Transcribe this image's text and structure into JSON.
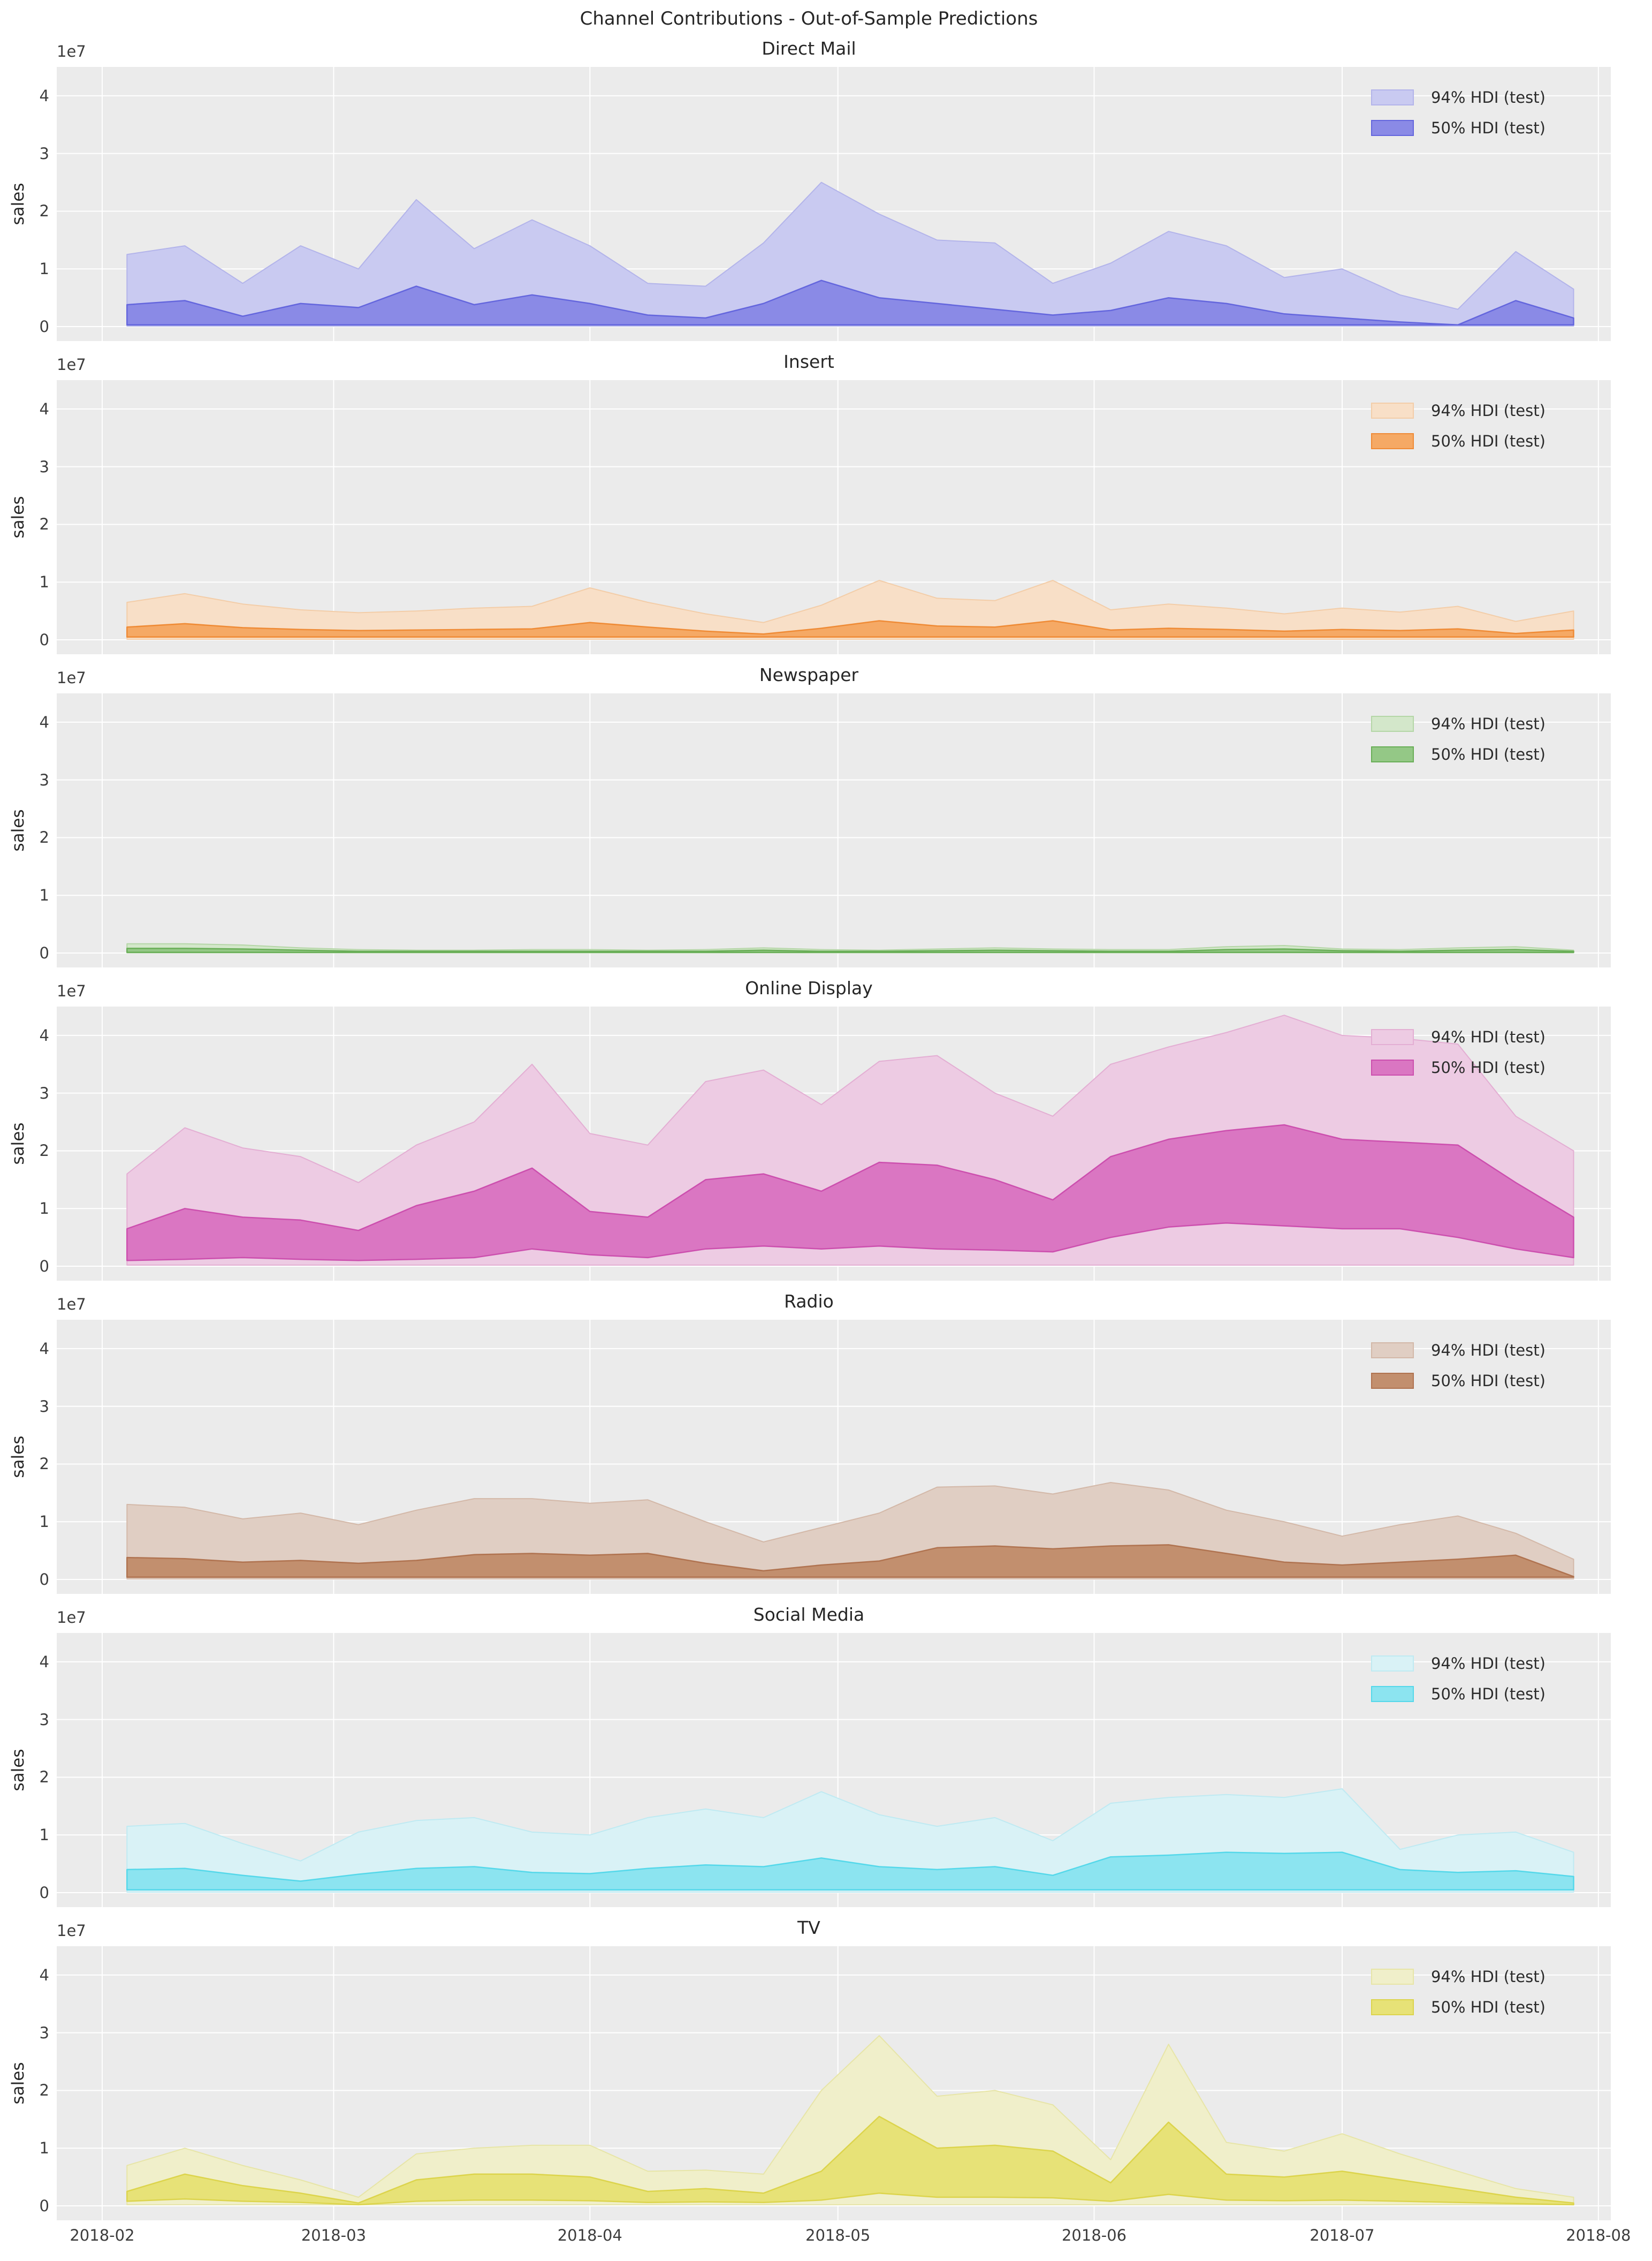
{
  "header": {
    "title": "Channel Contributions - Out-of-Sample Predictions"
  },
  "shared": {
    "ylabel": "sales",
    "y_offset_label": "1e7"
  },
  "style": {
    "figure_bg": "#ffffff",
    "plot_bg": "#ebebeb",
    "grid_color": "#ffffff",
    "title_color": "#262626",
    "tick_color": "#3d3d3d"
  },
  "chart_data": {
    "type": "area",
    "title": "Channel Contributions - Out-of-Sample Predictions",
    "subtitle_note": "7 stacked subplots, one per channel, each showing 94% and 50% HDI bands of weekly out-of-sample sales predictions",
    "xlabel": "",
    "ylabel": "sales",
    "y_units": "1e7",
    "ylim": [
      -0.25,
      4.5
    ],
    "y_ticks": [
      0,
      1,
      2,
      3,
      4
    ],
    "grid": true,
    "legend_position": "upper right",
    "x_ticks": [
      {
        "label": "2018-02",
        "date": "2018-02-01"
      },
      {
        "label": "2018-03",
        "date": "2018-03-01"
      },
      {
        "label": "2018-04",
        "date": "2018-04-01"
      },
      {
        "label": "2018-05",
        "date": "2018-05-01"
      },
      {
        "label": "2018-06",
        "date": "2018-06-01"
      },
      {
        "label": "2018-07",
        "date": "2018-07-01"
      },
      {
        "label": "2018-08",
        "date": "2018-08-01"
      }
    ],
    "x_dates": [
      "2018-02-04",
      "2018-02-11",
      "2018-02-18",
      "2018-02-25",
      "2018-03-04",
      "2018-03-11",
      "2018-03-18",
      "2018-03-25",
      "2018-04-01",
      "2018-04-08",
      "2018-04-15",
      "2018-04-22",
      "2018-04-29",
      "2018-05-06",
      "2018-05-13",
      "2018-05-20",
      "2018-05-27",
      "2018-06-03",
      "2018-06-10",
      "2018-06-17",
      "2018-06-24",
      "2018-07-01",
      "2018-07-08",
      "2018-07-15",
      "2018-07-22",
      "2018-07-29"
    ],
    "channels": [
      {
        "title": "Direct Mail",
        "legend": [
          "94% HDI (test)",
          "50% HDI (test)"
        ],
        "colors": {
          "hdi94_fill": "#c9caf1",
          "hdi94_edge": "#b3b4ea",
          "hdi50_fill": "#8a8ae6",
          "hdi50_edge": "#6466dd"
        },
        "hdi94_upper": [
          1.25,
          1.4,
          0.75,
          1.4,
          1.0,
          2.2,
          1.35,
          1.85,
          1.4,
          0.75,
          0.7,
          1.45,
          2.5,
          1.95,
          1.5,
          1.45,
          0.75,
          1.1,
          1.65,
          1.4,
          0.85,
          1.0,
          0.55,
          0.3,
          1.3,
          0.65
        ],
        "hdi94_lower": 0.01,
        "hdi50_upper": [
          0.38,
          0.45,
          0.18,
          0.4,
          0.33,
          0.7,
          0.38,
          0.55,
          0.4,
          0.2,
          0.15,
          0.4,
          0.8,
          0.5,
          0.4,
          0.3,
          0.2,
          0.28,
          0.5,
          0.4,
          0.22,
          0.15,
          0.08,
          0.03,
          0.45,
          0.15
        ],
        "hdi50_lower": 0.03
      },
      {
        "title": "Insert",
        "legend": [
          "94% HDI (test)",
          "50% HDI (test)"
        ],
        "colors": {
          "hdi94_fill": "#f8dfc7",
          "hdi94_edge": "#f3cda8",
          "hdi50_fill": "#f5a965",
          "hdi50_edge": "#ef8b36"
        },
        "hdi94_upper": [
          0.65,
          0.8,
          0.62,
          0.52,
          0.47,
          0.5,
          0.55,
          0.58,
          0.9,
          0.65,
          0.45,
          0.3,
          0.6,
          1.03,
          0.72,
          0.68,
          1.03,
          0.52,
          0.62,
          0.55,
          0.45,
          0.55,
          0.48,
          0.58,
          0.32,
          0.5
        ],
        "hdi94_lower": 0.01,
        "hdi50_upper": [
          0.22,
          0.28,
          0.21,
          0.18,
          0.16,
          0.17,
          0.18,
          0.19,
          0.3,
          0.22,
          0.15,
          0.1,
          0.2,
          0.33,
          0.24,
          0.22,
          0.33,
          0.17,
          0.2,
          0.18,
          0.15,
          0.18,
          0.16,
          0.19,
          0.11,
          0.17
        ],
        "hdi50_lower": 0.05
      },
      {
        "title": "Newspaper",
        "legend": [
          "94% HDI (test)",
          "50% HDI (test)"
        ],
        "colors": {
          "hdi94_fill": "#d3e7ca",
          "hdi94_edge": "#b4d6a6",
          "hdi50_fill": "#94c886",
          "hdi50_edge": "#69ae57"
        },
        "hdi94_upper": [
          0.16,
          0.16,
          0.14,
          0.09,
          0.06,
          0.05,
          0.05,
          0.06,
          0.06,
          0.05,
          0.06,
          0.09,
          0.06,
          0.05,
          0.07,
          0.09,
          0.07,
          0.06,
          0.06,
          0.11,
          0.13,
          0.07,
          0.06,
          0.09,
          0.11,
          0.05
        ],
        "hdi94_lower": 0.004,
        "hdi50_upper": [
          0.08,
          0.08,
          0.07,
          0.05,
          0.03,
          0.03,
          0.03,
          0.03,
          0.03,
          0.03,
          0.03,
          0.05,
          0.03,
          0.03,
          0.04,
          0.05,
          0.04,
          0.03,
          0.03,
          0.06,
          0.07,
          0.04,
          0.03,
          0.05,
          0.06,
          0.03
        ],
        "hdi50_lower": 0.012
      },
      {
        "title": "Online Display",
        "legend": [
          "94% HDI (test)",
          "50% HDI (test)"
        ],
        "colors": {
          "hdi94_fill": "#edcbe3",
          "hdi94_edge": "#e3aed3",
          "hdi50_fill": "#da76c2",
          "hdi50_edge": "#cc4fae"
        },
        "hdi94_upper": [
          1.6,
          2.4,
          2.05,
          1.9,
          1.45,
          2.1,
          2.5,
          3.5,
          2.3,
          2.1,
          3.2,
          3.4,
          2.8,
          3.55,
          3.65,
          3.0,
          2.6,
          3.5,
          3.8,
          4.05,
          4.35,
          4.0,
          3.95,
          3.85,
          2.6,
          2.0
        ],
        "hdi94_lower": 0.02,
        "hdi50_upper": [
          0.65,
          1.0,
          0.85,
          0.8,
          0.62,
          1.05,
          1.3,
          1.7,
          0.95,
          0.85,
          1.5,
          1.6,
          1.3,
          1.8,
          1.75,
          1.5,
          1.15,
          1.9,
          2.2,
          2.35,
          2.45,
          2.2,
          2.15,
          2.1,
          1.45,
          0.85
        ],
        "hdi50_lower": [
          0.1,
          0.12,
          0.15,
          0.12,
          0.1,
          0.12,
          0.15,
          0.3,
          0.2,
          0.15,
          0.3,
          0.35,
          0.3,
          0.35,
          0.3,
          0.28,
          0.25,
          0.5,
          0.68,
          0.75,
          0.7,
          0.65,
          0.65,
          0.5,
          0.3,
          0.15
        ]
      },
      {
        "title": "Radio",
        "legend": [
          "94% HDI (test)",
          "50% HDI (test)"
        ],
        "colors": {
          "hdi94_fill": "#e0cec3",
          "hdi94_edge": "#d3b8a8",
          "hdi50_fill": "#c28f6e",
          "hdi50_edge": "#b07350"
        },
        "hdi94_upper": [
          1.3,
          1.25,
          1.05,
          1.15,
          0.95,
          1.2,
          1.4,
          1.4,
          1.32,
          1.38,
          1.0,
          0.65,
          0.9,
          1.15,
          1.6,
          1.62,
          1.48,
          1.68,
          1.55,
          1.2,
          1.0,
          0.75,
          0.95,
          1.1,
          0.8,
          0.35
        ],
        "hdi94_lower": 0.01,
        "hdi50_upper": [
          0.38,
          0.36,
          0.3,
          0.33,
          0.28,
          0.33,
          0.43,
          0.45,
          0.42,
          0.45,
          0.28,
          0.15,
          0.25,
          0.32,
          0.55,
          0.58,
          0.53,
          0.58,
          0.6,
          0.45,
          0.3,
          0.25,
          0.3,
          0.35,
          0.42,
          0.05
        ],
        "hdi50_lower": 0.04
      },
      {
        "title": "Social Media",
        "legend": [
          "94% HDI (test)",
          "50% HDI (test)"
        ],
        "colors": {
          "hdi94_fill": "#d9f2f6",
          "hdi94_edge": "#bfeaf2",
          "hdi50_fill": "#8ce4f0",
          "hdi50_edge": "#55d8ea"
        },
        "hdi94_upper": [
          1.15,
          1.2,
          0.85,
          0.55,
          1.05,
          1.25,
          1.3,
          1.05,
          1.0,
          1.3,
          1.45,
          1.3,
          1.75,
          1.35,
          1.15,
          1.3,
          0.9,
          1.55,
          1.65,
          1.7,
          1.65,
          1.8,
          0.75,
          1.0,
          1.05,
          0.7
        ],
        "hdi94_lower": 0.01,
        "hdi50_upper": [
          0.4,
          0.42,
          0.3,
          0.2,
          0.32,
          0.42,
          0.45,
          0.35,
          0.33,
          0.42,
          0.48,
          0.45,
          0.6,
          0.45,
          0.4,
          0.45,
          0.3,
          0.62,
          0.65,
          0.7,
          0.68,
          0.7,
          0.4,
          0.35,
          0.38,
          0.28
        ],
        "hdi50_lower": 0.05
      },
      {
        "title": "TV",
        "legend": [
          "94% HDI (test)",
          "50% HDI (test)"
        ],
        "colors": {
          "hdi94_fill": "#f0efca",
          "hdi94_edge": "#e7e5a7",
          "hdi50_fill": "#e7e277",
          "hdi50_edge": "#dcd44c"
        },
        "hdi94_upper": [
          0.7,
          1.0,
          0.7,
          0.45,
          0.15,
          0.9,
          1.0,
          1.05,
          1.05,
          0.6,
          0.62,
          0.55,
          2.0,
          2.95,
          1.9,
          2.0,
          1.75,
          0.8,
          2.8,
          1.1,
          0.95,
          1.25,
          0.9,
          0.6,
          0.3,
          0.15
        ],
        "hdi94_lower": 0.02,
        "hdi50_upper": [
          0.25,
          0.55,
          0.35,
          0.22,
          0.05,
          0.45,
          0.55,
          0.55,
          0.5,
          0.25,
          0.3,
          0.22,
          0.6,
          1.55,
          1.0,
          1.05,
          0.95,
          0.4,
          1.45,
          0.55,
          0.5,
          0.6,
          0.45,
          0.3,
          0.15,
          0.05
        ],
        "hdi50_lower": [
          0.08,
          0.12,
          0.08,
          0.06,
          0.02,
          0.08,
          0.1,
          0.1,
          0.09,
          0.06,
          0.07,
          0.06,
          0.1,
          0.22,
          0.15,
          0.15,
          0.14,
          0.08,
          0.2,
          0.1,
          0.09,
          0.1,
          0.08,
          0.06,
          0.04,
          0.02
        ]
      }
    ]
  }
}
